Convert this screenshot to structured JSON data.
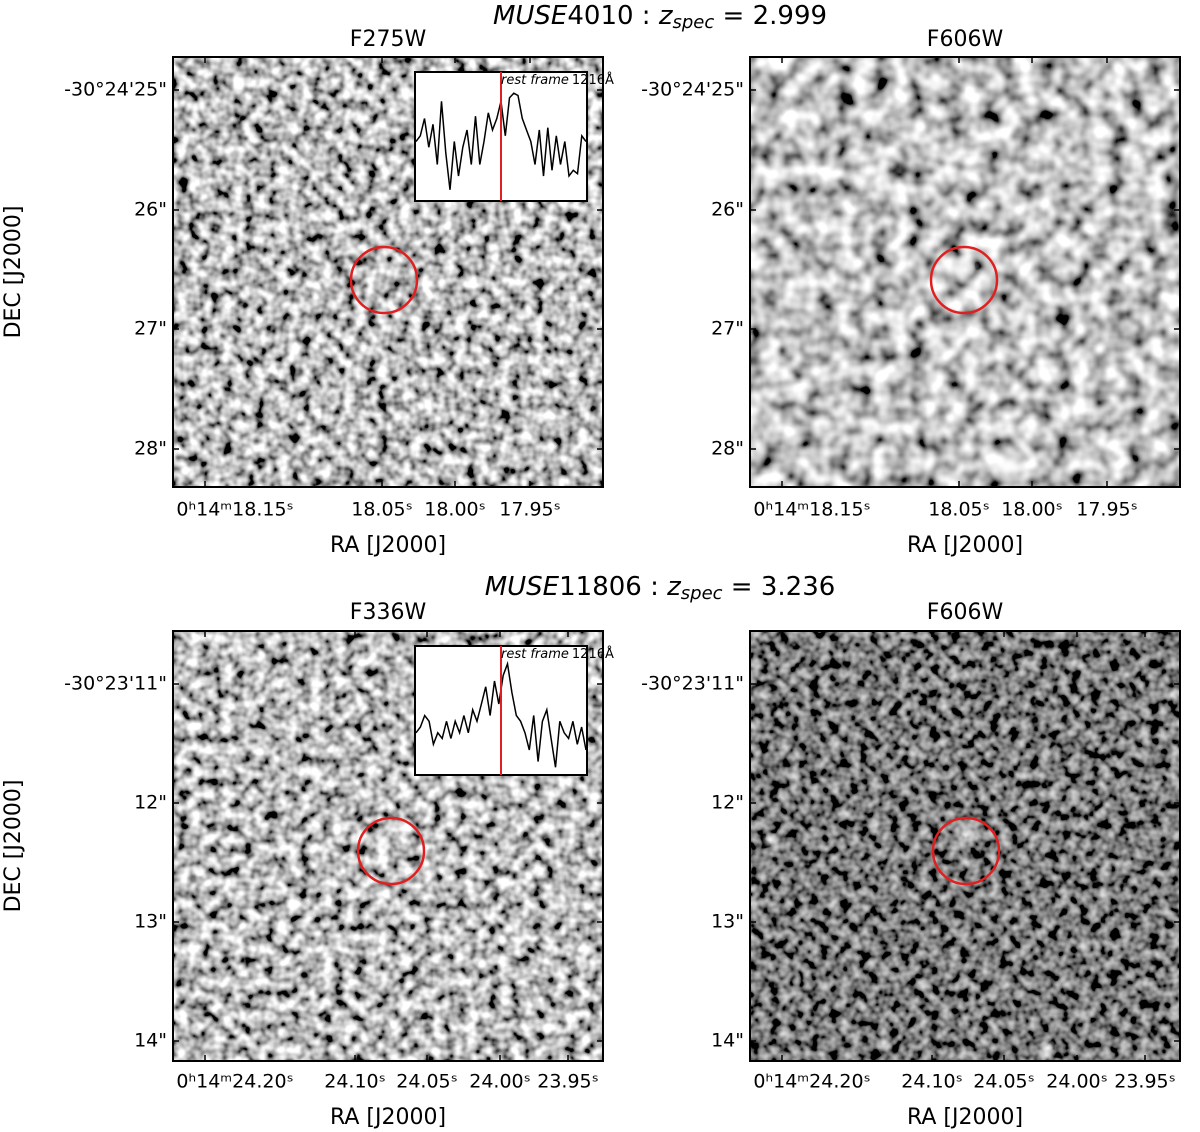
{
  "figures": [
    {
      "title": {
        "object": "MUSE",
        "id": "4010 : ",
        "z": "z",
        "sub": "spec",
        "rest": " = 2.999"
      },
      "panels": [
        {
          "title": "F275W",
          "ylabel": "DEC [J2000]",
          "xlabel": "RA [J2000]",
          "yticks": [
            "-30°24'25\"",
            "26\"",
            "27\"",
            "28\""
          ],
          "xticks": [
            "0ʰ14ᵐ18.15ˢ",
            "18.05ˢ",
            "18.00ˢ",
            "17.95ˢ"
          ],
          "inset": {
            "label_italic": "rest frame",
            "label_rest": "1216Å",
            "flux": [
              0.5,
              0.55,
              0.7,
              0.45,
              0.65,
              0.3,
              0.85,
              0.4,
              0.08,
              0.5,
              0.2,
              0.45,
              0.6,
              0.3,
              0.72,
              0.3,
              0.5,
              0.75,
              0.6,
              0.7,
              0.85,
              0.55,
              0.88,
              0.92,
              0.9,
              0.7,
              0.6,
              0.5,
              0.3,
              0.6,
              0.2,
              0.62,
              0.25,
              0.55,
              0.3,
              0.5,
              0.2,
              0.25,
              0.22,
              0.55,
              0.5
            ]
          }
        },
        {
          "title": "F606W",
          "xlabel": "RA [J2000]",
          "yticks": [
            "-30°24'25\"",
            "26\"",
            "27\"",
            "28\""
          ],
          "xticks": [
            "0ʰ14ᵐ18.15ˢ",
            "18.05ˢ",
            "18.00ˢ",
            "17.95ˢ"
          ]
        }
      ]
    },
    {
      "title": {
        "object": "MUSE",
        "id": "11806 : ",
        "z": "z",
        "sub": "spec",
        "rest": " = 3.236"
      },
      "panels": [
        {
          "title": "F336W",
          "ylabel": "DEC [J2000]",
          "xlabel": "RA [J2000]",
          "yticks": [
            "-30°23'11\"",
            "12\"",
            "13\"",
            "14\""
          ],
          "xticks": [
            "0ʰ14ᵐ24.20ˢ",
            "24.10ˢ",
            "24.05ˢ",
            "24.00ˢ",
            "23.95ˢ"
          ],
          "inset": {
            "label_italic": "rest frame",
            "label_rest": "1216Å",
            "flux": [
              0.35,
              0.4,
              0.5,
              0.45,
              0.25,
              0.35,
              0.3,
              0.45,
              0.3,
              0.45,
              0.35,
              0.5,
              0.35,
              0.55,
              0.45,
              0.6,
              0.75,
              0.5,
              0.8,
              0.6,
              0.85,
              0.95,
              0.7,
              0.5,
              0.45,
              0.35,
              0.2,
              0.5,
              0.1,
              0.45,
              0.55,
              0.3,
              0.05,
              0.45,
              0.35,
              0.3,
              0.45,
              0.25,
              0.4,
              0.2
            ]
          }
        },
        {
          "title": "F606W",
          "xlabel": "RA [J2000]",
          "yticks": [
            "-30°23'11\"",
            "12\"",
            "13\"",
            "14\""
          ],
          "xticks": [
            "0ʰ14ᵐ24.20ˢ",
            "24.10ˢ",
            "24.05ˢ",
            "24.00ˢ",
            "23.95ˢ"
          ]
        }
      ]
    }
  ]
}
